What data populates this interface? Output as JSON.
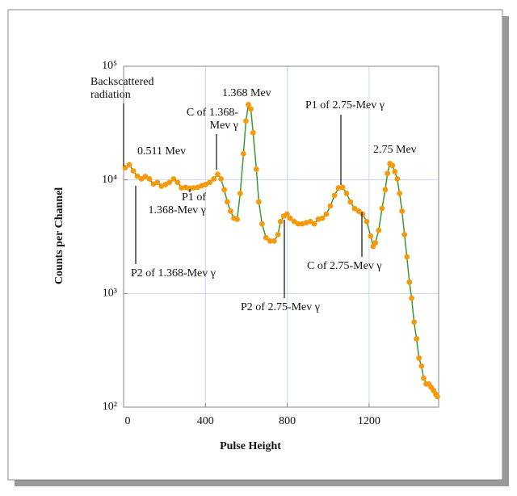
{
  "chart_data": {
    "type": "line",
    "xlabel": "Pulse Height",
    "ylabel": "Counts per Channel",
    "log_y": true,
    "grid": true,
    "color": "#3a9a2e",
    "marker_color": "#f59a0c",
    "xlim": [
      0,
      1540
    ],
    "xticks": [
      0,
      400,
      800,
      1200
    ],
    "ylim": [
      100,
      100000
    ],
    "yticks": [
      {
        "value": 100,
        "label": "10²"
      },
      {
        "value": 1000,
        "label": "10³"
      },
      {
        "value": 10000,
        "label": "10⁴"
      },
      {
        "value": 100000,
        "label": "10⁵"
      }
    ],
    "x": [
      8,
      28,
      47,
      67,
      87,
      106,
      126,
      146,
      165,
      185,
      205,
      224,
      244,
      264,
      283,
      303,
      323,
      342,
      362,
      382,
      401,
      421,
      441,
      460,
      476,
      492,
      507,
      523,
      539,
      555,
      570,
      586,
      598,
      610,
      622,
      633,
      649,
      661,
      677,
      696,
      716,
      736,
      755,
      767,
      783,
      799,
      814,
      834,
      854,
      873,
      893,
      913,
      932,
      952,
      972,
      991,
      1011,
      1031,
      1050,
      1070,
      1090,
      1109,
      1129,
      1149,
      1168,
      1188,
      1208,
      1220,
      1231,
      1247,
      1263,
      1279,
      1290,
      1302,
      1314,
      1326,
      1338,
      1349,
      1361,
      1373,
      1385,
      1397,
      1408,
      1420,
      1432,
      1444,
      1456,
      1467,
      1479,
      1491,
      1503,
      1515,
      1526,
      1534
    ],
    "values": [
      12800,
      13600,
      12000,
      10800,
      10200,
      10700,
      10200,
      9200,
      9500,
      8800,
      9100,
      9500,
      10200,
      9500,
      8500,
      8600,
      8400,
      8500,
      8600,
      8900,
      9100,
      9500,
      10200,
      11200,
      10200,
      8200,
      6400,
      5300,
      4600,
      4500,
      7600,
      17000,
      33000,
      46000,
      42000,
      26000,
      12400,
      6400,
      4100,
      3100,
      2900,
      2900,
      3300,
      4300,
      4800,
      5000,
      4600,
      4300,
      4100,
      4100,
      4200,
      4300,
      4100,
      4500,
      4600,
      5000,
      5900,
      7300,
      8500,
      8600,
      7600,
      6400,
      5600,
      5300,
      5000,
      4300,
      3200,
      2600,
      2800,
      3600,
      5600,
      8200,
      11400,
      13900,
      13400,
      11800,
      10200,
      7600,
      5300,
      3300,
      2100,
      1260,
      910,
      560,
      400,
      270,
      230,
      180,
      160,
      160,
      150,
      140,
      130,
      124
    ],
    "annotations": [
      {
        "lines": [
          "Backscattered",
          "radiation"
        ]
      },
      {
        "lines": [
          "0.511 Mev"
        ]
      },
      {
        "lines": [
          "C of 1.368-",
          "Mev γ"
        ]
      },
      {
        "lines": [
          "1.368 Mev"
        ]
      },
      {
        "lines": [
          "P1 of",
          "1.368-Mev γ"
        ]
      },
      {
        "lines": [
          "P2 of 1.368-Mev γ"
        ]
      },
      {
        "lines": [
          "P2 of 2.75-Mev γ"
        ]
      },
      {
        "lines": [
          "P1 of 2.75-Mev γ"
        ]
      },
      {
        "lines": [
          "C of 2.75-Mev γ"
        ]
      },
      {
        "lines": [
          "2.75 Mev"
        ]
      }
    ]
  }
}
